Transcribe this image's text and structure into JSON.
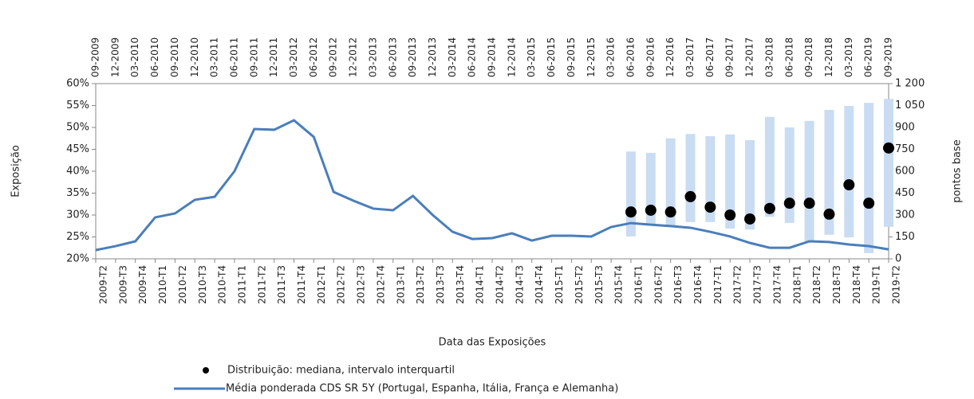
{
  "chart_data": {
    "type": "combo",
    "categories": [
      "2009-T2",
      "2009-T3",
      "2009-T4",
      "2010-T1",
      "2010-T2",
      "2010-T3",
      "2010-T4",
      "2011-T1",
      "2011-T2",
      "2011-T3",
      "2011-T4",
      "2012-T1",
      "2012-T2",
      "2012-T3",
      "2012-T4",
      "2013-T1",
      "2013-T2",
      "2013-T3",
      "2013-T4",
      "2014-T1",
      "2014-T2",
      "2014-T3",
      "2014-T4",
      "2015-T1",
      "2015-T2",
      "2015-T3",
      "2015-T4",
      "2016-T1",
      "2016-T2",
      "2016-T3",
      "2016-T4",
      "2017-T1",
      "2017-T2",
      "2017-T3",
      "2017-T4",
      "2018-T1",
      "2018-T2",
      "2018-T3",
      "2018-T4",
      "2019-T1",
      "2019-T2"
    ],
    "top_categories": [
      "09-2009",
      "12-2009",
      "03-2010",
      "06-2010",
      "09-2010",
      "12-2010",
      "03-2011",
      "06-2011",
      "09-2011",
      "12-2011",
      "03-2012",
      "06-2012",
      "09-2012",
      "12-2012",
      "03-2013",
      "06-2013",
      "09-2013",
      "12-2013",
      "03-2014",
      "06-2014",
      "09-2014",
      "12-2014",
      "03-2015",
      "06-2015",
      "09-2015",
      "12-2015",
      "03-2016",
      "06-2016",
      "09-2016",
      "12-2016",
      "03-2017",
      "06-2017",
      "09-2017",
      "12-2017",
      "03-2018",
      "06-2018",
      "09-2018",
      "12-2018",
      "03-2019",
      "06-2019",
      "09-2019"
    ],
    "x_label": "Data das Exposições",
    "y_label": "Exposição",
    "y2_label": "pontos base",
    "ylim": [
      20,
      60
    ],
    "yticks": [
      {
        "value": 20,
        "label": "20%"
      },
      {
        "value": 25,
        "label": "25%"
      },
      {
        "value": 30,
        "label": "30%"
      },
      {
        "value": 35,
        "label": "35%"
      },
      {
        "value": 40,
        "label": "40%"
      },
      {
        "value": 45,
        "label": "45%"
      },
      {
        "value": 50,
        "label": "50%"
      },
      {
        "value": 55,
        "label": "55%"
      },
      {
        "value": 60,
        "label": "60%"
      }
    ],
    "y2lim": [
      0,
      1200
    ],
    "y2ticks": [
      0,
      150,
      300,
      450,
      600,
      750,
      900,
      {
        "value": 1050,
        "label": "1 050"
      },
      {
        "value": 1200,
        "label": "1 200"
      }
    ],
    "ranges": {
      "color": "#c9dcf2",
      "low": [
        null,
        null,
        null,
        null,
        null,
        null,
        null,
        null,
        null,
        null,
        null,
        null,
        null,
        null,
        null,
        null,
        null,
        null,
        null,
        null,
        null,
        null,
        null,
        null,
        null,
        null,
        null,
        25.1,
        27.6,
        27.6,
        28.4,
        28.4,
        26.9,
        26.7,
        29.6,
        28.2,
        24.0,
        25.5,
        24.9,
        21.3,
        27.3
      ],
      "high": [
        null,
        null,
        null,
        null,
        null,
        null,
        null,
        null,
        null,
        null,
        null,
        null,
        null,
        null,
        null,
        null,
        null,
        null,
        null,
        null,
        null,
        null,
        null,
        null,
        null,
        null,
        null,
        44.5,
        44.2,
        47.5,
        48.5,
        48.0,
        48.4,
        47.1,
        52.4,
        50.0,
        51.5,
        54.0,
        54.9,
        55.6,
        56.5
      ]
    },
    "series": [
      {
        "name": "Distribuição: mediana, intervalo interquartil",
        "type": "scatter",
        "color": "#000000",
        "values": [
          null,
          null,
          null,
          null,
          null,
          null,
          null,
          null,
          null,
          null,
          null,
          null,
          null,
          null,
          null,
          null,
          null,
          null,
          null,
          null,
          null,
          null,
          null,
          null,
          null,
          null,
          null,
          30.7,
          31.1,
          30.7,
          34.2,
          31.8,
          30.0,
          29.1,
          31.5,
          32.7,
          32.7,
          30.2,
          36.9,
          32.7,
          45.3
        ]
      },
      {
        "name": "Média ponderada CDS SR 5Y (Portugal, Espanha, Itália, França e Alemanha)",
        "type": "line",
        "axis": "y2",
        "color": "#4a7ebb",
        "values": [
          60,
          87,
          120,
          284,
          311,
          404,
          425,
          600,
          889,
          884,
          949,
          835,
          458,
          398,
          344,
          333,
          431,
          300,
          185,
          136,
          142,
          175,
          125,
          158,
          158,
          153,
          218,
          245,
          234,
          224,
          213,
          185,
          153,
          109,
          76,
          76,
          120,
          115,
          98,
          87,
          65
        ]
      }
    ]
  }
}
